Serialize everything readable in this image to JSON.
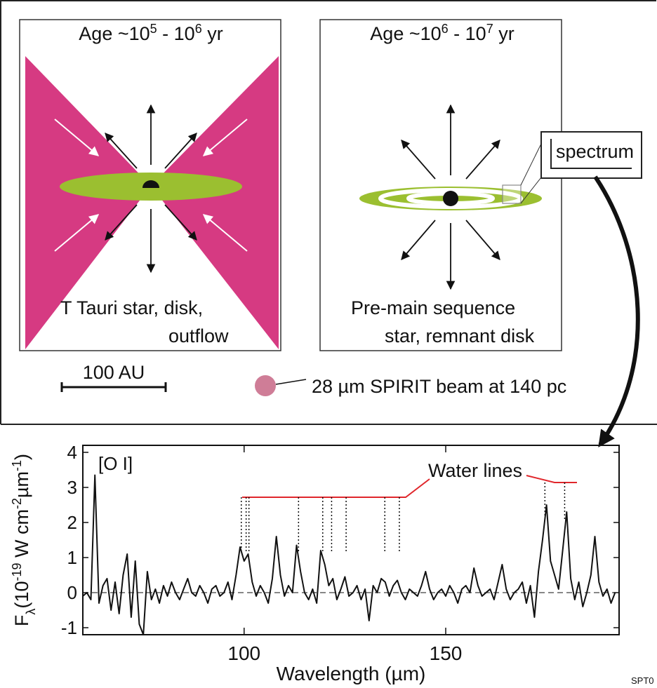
{
  "diagram": {
    "panel1": {
      "title": [
        "Age ~10",
        "5",
        " - 10",
        "6",
        " yr"
      ],
      "caption": [
        "T Tauri star, disk,",
        "outflow"
      ]
    },
    "panel2": {
      "title": [
        "Age ~10",
        "6",
        " - 10",
        "7",
        " yr"
      ],
      "caption": [
        "Pre-main sequence",
        "star, remnant disk"
      ],
      "inset": "spectrum"
    },
    "scale_bar": "100 AU",
    "beam": "28 µm SPIRIT beam at 140 pc",
    "credit": "SPT0"
  },
  "chart_data": {
    "type": "line",
    "ylabel": [
      "F",
      "λ",
      "(10",
      "-19",
      " W cm",
      "-2",
      "µm",
      "-1",
      ")"
    ],
    "xlabel": "Wavelength (µm)",
    "annotations": {
      "oi": "[O I]",
      "water": "Water lines"
    },
    "water_lines": [
      99.3,
      100.5,
      101.2,
      113.5,
      119.5,
      121.7,
      125.3,
      134.9,
      138.5,
      174.6,
      179.5
    ],
    "xlim": [
      60,
      193
    ],
    "ylim": [
      -1.2,
      4.2
    ],
    "xticks": [
      100,
      150
    ],
    "yticks": [
      -1,
      0,
      1,
      2,
      3,
      4
    ],
    "color": "#111111",
    "annotation_color": "#e0262b",
    "x": [
      60,
      61,
      62,
      63,
      64,
      65,
      66,
      67,
      68,
      69,
      70,
      71,
      72,
      73,
      74,
      75,
      76,
      77,
      78,
      79,
      80,
      81,
      82,
      83,
      84,
      85,
      86,
      87,
      88,
      89,
      90,
      91,
      92,
      93,
      94,
      95,
      96,
      97,
      98,
      99,
      100,
      101,
      102,
      103,
      104,
      105,
      106,
      107,
      108,
      109,
      110,
      111,
      112,
      113,
      114,
      115,
      116,
      117,
      118,
      119,
      120,
      121,
      122,
      123,
      124,
      125,
      126,
      127,
      128,
      129,
      130,
      131,
      132,
      133,
      134,
      135,
      136,
      137,
      138,
      139,
      140,
      141,
      142,
      143,
      144,
      145,
      146,
      147,
      148,
      149,
      150,
      151,
      152,
      153,
      154,
      155,
      156,
      157,
      158,
      159,
      160,
      161,
      162,
      163,
      164,
      165,
      166,
      167,
      168,
      169,
      170,
      171,
      172,
      173,
      174,
      175,
      176,
      177,
      178,
      179,
      180,
      181,
      182,
      183,
      184,
      185,
      186,
      187,
      188,
      189,
      190,
      191,
      192
    ],
    "values": [
      -0.1,
      0.0,
      -0.2,
      3.35,
      -0.3,
      0.2,
      0.4,
      -0.5,
      0.3,
      -0.6,
      0.5,
      1.1,
      -0.7,
      0.9,
      -0.9,
      -1.2,
      0.6,
      -0.2,
      0.1,
      -0.3,
      0.2,
      -0.1,
      0.3,
      0.0,
      -0.2,
      0.1,
      0.4,
      0.0,
      -0.1,
      0.2,
      0.0,
      -0.3,
      0.1,
      0.2,
      -0.1,
      0.0,
      0.3,
      -0.2,
      0.5,
      1.3,
      0.9,
      1.1,
      0.3,
      -0.1,
      0.2,
      0.0,
      -0.3,
      0.4,
      1.6,
      0.5,
      -0.1,
      0.2,
      0.0,
      1.35,
      0.6,
      0.0,
      -0.2,
      0.1,
      -0.3,
      1.2,
      0.8,
      0.2,
      0.4,
      -0.2,
      0.1,
      0.45,
      -0.1,
      0.0,
      0.2,
      -0.2,
      0.1,
      -0.8,
      0.2,
      0.0,
      0.4,
      0.3,
      -0.1,
      0.2,
      0.35,
      0.0,
      -0.2,
      0.1,
      0.0,
      -0.1,
      0.2,
      0.6,
      0.1,
      -0.2,
      0.0,
      0.1,
      -0.1,
      0.2,
      0.0,
      -0.3,
      0.1,
      0.2,
      0.0,
      0.7,
      0.2,
      -0.1,
      0.0,
      0.1,
      -0.2,
      0.3,
      0.8,
      0.1,
      -0.2,
      0.0,
      0.1,
      0.3,
      -0.3,
      0.2,
      -0.7,
      0.6,
      1.5,
      2.5,
      0.9,
      0.5,
      0.1,
      1.2,
      2.3,
      0.4,
      -0.2,
      0.3,
      -0.4,
      0.0,
      0.5,
      1.6,
      0.3,
      -0.1,
      0.1,
      -0.3,
      0.0
    ]
  }
}
